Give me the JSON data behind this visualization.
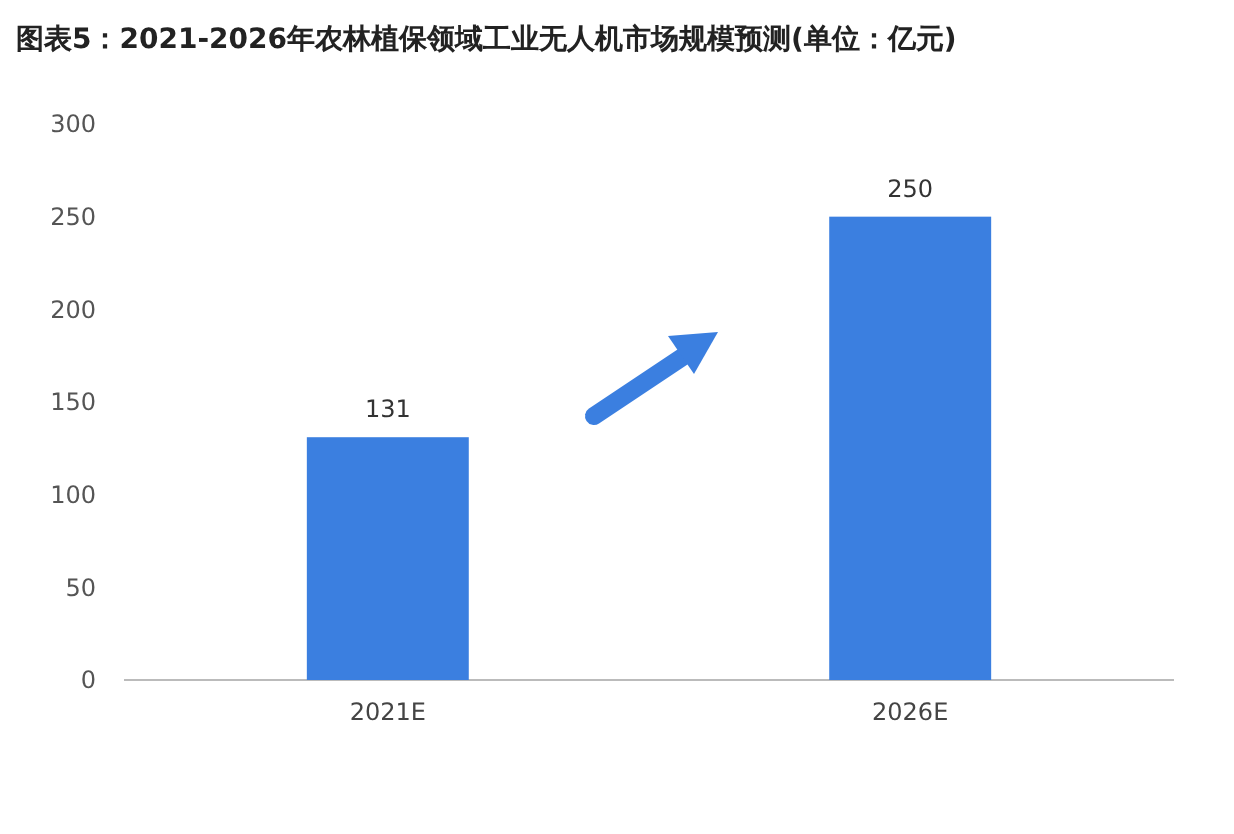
{
  "chart_data": {
    "type": "bar",
    "title": "图表5：2021-2026年农林植保领域工业无人机市场规模预测(单位：亿元)",
    "categories": [
      "2021E",
      "2026E"
    ],
    "values": [
      131,
      250
    ],
    "color": "#3b7fe0",
    "ylim": [
      0,
      300
    ],
    "yticks": [
      0,
      50,
      100,
      150,
      200,
      250,
      300
    ],
    "grid": false,
    "data_labels": true
  }
}
